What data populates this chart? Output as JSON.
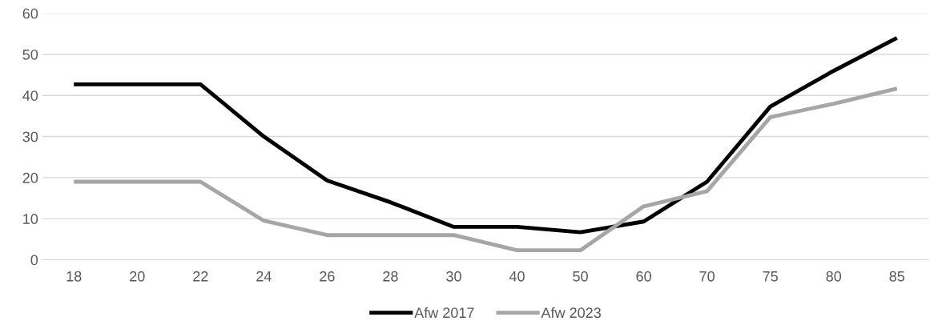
{
  "chart_data": {
    "type": "line",
    "categories": [
      "18",
      "20",
      "22",
      "24",
      "26",
      "28",
      "30",
      "40",
      "50",
      "60",
      "70",
      "75",
      "80",
      "85"
    ],
    "series": [
      {
        "name": "Afw 2017",
        "color": "#000000",
        "values": [
          42.7,
          42.7,
          42.7,
          30,
          19.3,
          14,
          8,
          8,
          6.7,
          9.3,
          19,
          37.3,
          46,
          54
        ]
      },
      {
        "name": "Afw 2023",
        "color": "#a6a6a6",
        "values": [
          19,
          19,
          19,
          9.5,
          6,
          6,
          6,
          2.3,
          2.3,
          13,
          16.7,
          34.7,
          38,
          41.7
        ]
      }
    ],
    "ylim": [
      0,
      60
    ],
    "yticks": [
      0,
      10,
      20,
      30,
      40,
      50,
      60
    ],
    "grid": "y",
    "legend": "bottom",
    "marker": "none",
    "line_style": "solid"
  }
}
